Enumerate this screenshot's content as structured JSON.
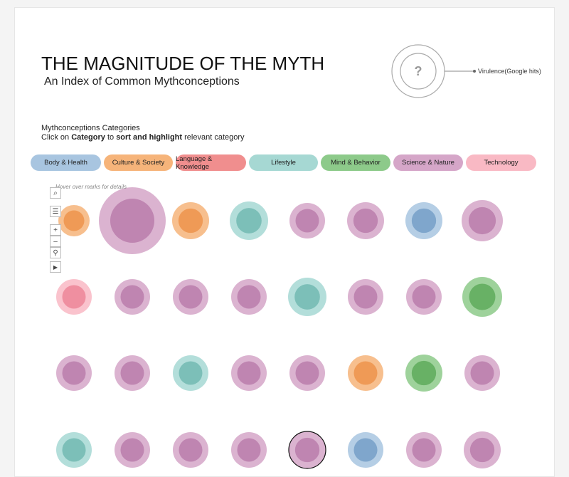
{
  "header": {
    "title": "THE MAGNITUDE OF THE MYTH",
    "subtitle": "An Index of Common Mythconceptions"
  },
  "legend": {
    "symbol": "?",
    "label": "Virulence(Google hits)"
  },
  "categories_section": {
    "heading": "Mythconceptions Categories",
    "instruction": [
      "Click on",
      "Category",
      "to",
      "sort and highlight",
      "relevant category"
    ]
  },
  "categories": [
    "Body & Health",
    "Culture & Society",
    "Language & Knowledge",
    "Lifestyle",
    "Mind & Behavior",
    "Science & Nature",
    "Technology"
  ],
  "hint": "Hover over marks for details"
}
